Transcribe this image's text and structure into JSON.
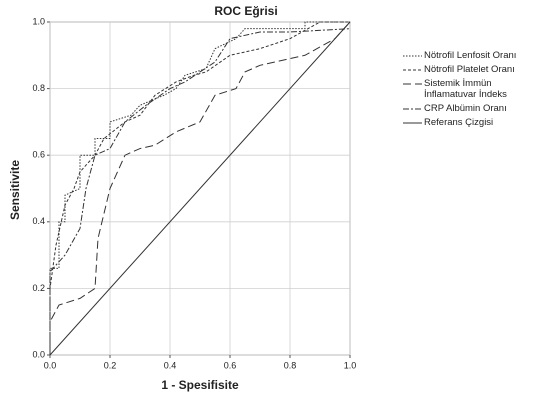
{
  "chart_data": {
    "type": "line",
    "title": "ROC Eğrisi",
    "x_label": "1 - Spesifisite",
    "y_label": "Sensitivite",
    "xlim": [
      0,
      1
    ],
    "ylim": [
      0,
      1
    ],
    "xticks": [
      {
        "value": 0,
        "label": "0.0"
      },
      {
        "value": 0.2,
        "label": "0.2"
      },
      {
        "value": 0.4,
        "label": "0.4"
      },
      {
        "value": 0.6,
        "label": "0.6"
      },
      {
        "value": 0.8,
        "label": "0.8"
      },
      {
        "value": 1,
        "label": "1.0"
      }
    ],
    "yticks": [
      {
        "value": 0,
        "label": "0.0"
      },
      {
        "value": 0.2,
        "label": "0.2"
      },
      {
        "value": 0.4,
        "label": "0.4"
      },
      {
        "value": 0.6,
        "label": "0.6"
      },
      {
        "value": 0.8,
        "label": "0.8"
      },
      {
        "value": 1,
        "label": "1.0"
      }
    ],
    "grid": true,
    "legend": "right",
    "series": [
      {
        "name": "Nötrofil Lenfosit Oranı",
        "color": "#333333",
        "dash": "1.5,1.5",
        "x": [
          0,
          0,
          0.03,
          0.03,
          0.05,
          0.05,
          0.1,
          0.1,
          0.15,
          0.15,
          0.2,
          0.2,
          0.27,
          0.3,
          0.38,
          0.42,
          0.45,
          0.52,
          0.55,
          0.62,
          0.65,
          0.85,
          0.85,
          1
        ],
        "values": [
          0,
          0.26,
          0.26,
          0.4,
          0.4,
          0.48,
          0.5,
          0.6,
          0.6,
          0.65,
          0.65,
          0.7,
          0.72,
          0.75,
          0.78,
          0.8,
          0.84,
          0.86,
          0.92,
          0.95,
          0.98,
          0.98,
          1,
          1
        ]
      },
      {
        "name": "Nötrofil Platelet Oranı",
        "color": "#333333",
        "dash": "3,2",
        "x": [
          0,
          0,
          0.02,
          0.05,
          0.08,
          0.1,
          0.15,
          0.18,
          0.25,
          0.3,
          0.35,
          0.42,
          0.48,
          0.52,
          0.6,
          0.7,
          0.8,
          0.9,
          1
        ],
        "values": [
          0,
          0.2,
          0.33,
          0.45,
          0.5,
          0.55,
          0.6,
          0.65,
          0.7,
          0.72,
          0.78,
          0.82,
          0.84,
          0.85,
          0.9,
          0.92,
          0.95,
          1,
          1
        ]
      },
      {
        "name": "Sistemik İmmün İnflamatuvar İndeks",
        "color": "#333333",
        "dash": "8,4",
        "x": [
          0,
          0,
          0.03,
          0.1,
          0.15,
          0.16,
          0.2,
          0.25,
          0.3,
          0.35,
          0.42,
          0.5,
          0.55,
          0.62,
          0.65,
          0.7,
          0.85,
          0.95,
          1
        ],
        "values": [
          0,
          0.1,
          0.15,
          0.17,
          0.2,
          0.35,
          0.5,
          0.6,
          0.62,
          0.63,
          0.67,
          0.7,
          0.78,
          0.8,
          0.85,
          0.87,
          0.9,
          0.95,
          1
        ]
      },
      {
        "name": "CRP Albümin Oranı",
        "color": "#333333",
        "dash": "6,2,2,2",
        "x": [
          0,
          0,
          0.05,
          0.1,
          0.12,
          0.15,
          0.2,
          0.25,
          0.32,
          0.4,
          0.45,
          0.5,
          0.55,
          0.6,
          0.7,
          0.8,
          1
        ],
        "values": [
          0,
          0.25,
          0.3,
          0.38,
          0.5,
          0.6,
          0.62,
          0.7,
          0.75,
          0.8,
          0.82,
          0.85,
          0.88,
          0.95,
          0.97,
          0.97,
          0.98
        ]
      },
      {
        "name": "Referans Çizgisi",
        "color": "#333333",
        "dash": "none",
        "x": [
          0,
          1
        ],
        "values": [
          0,
          1
        ]
      }
    ]
  }
}
